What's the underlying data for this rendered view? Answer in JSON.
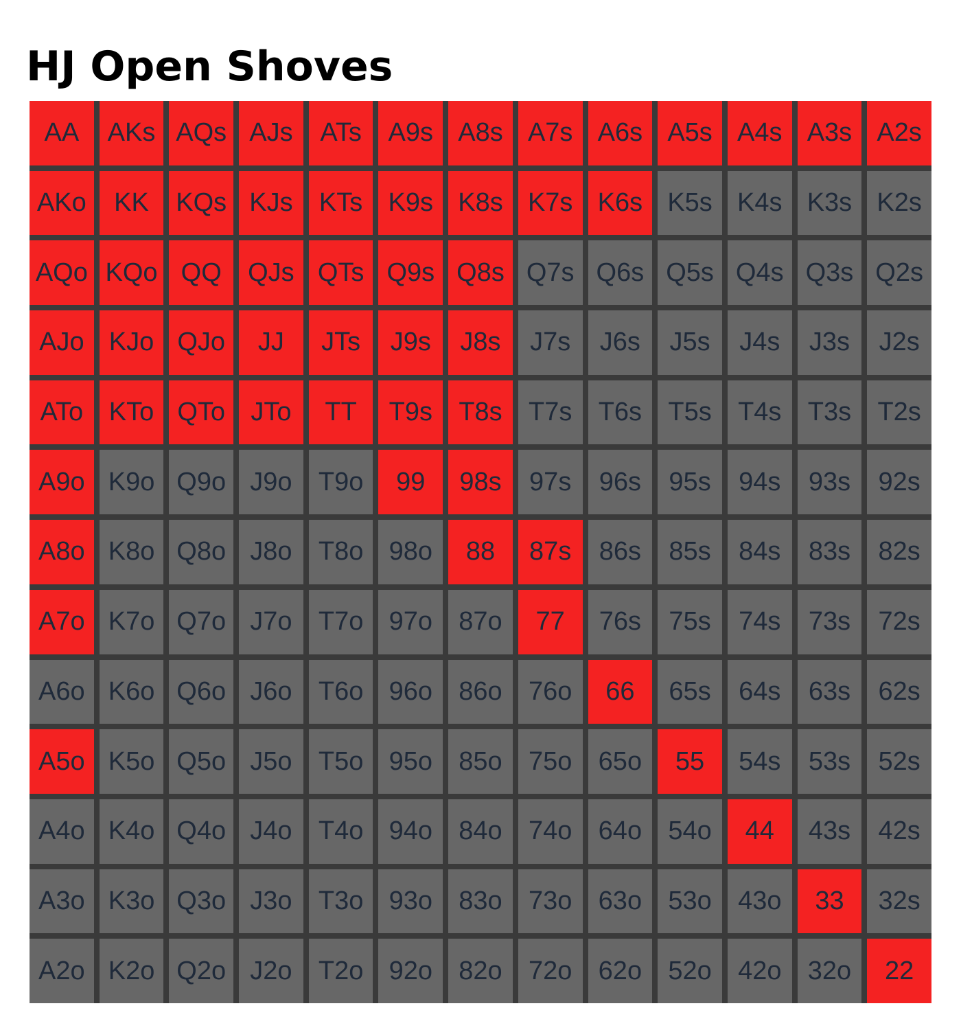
{
  "title": "HJ Open Shoves",
  "chart_data": {
    "type": "heatmap",
    "title": "HJ Open Shoves",
    "colors": {
      "shove": "#f42222",
      "fold": "#676767",
      "border": "#3a3a3a",
      "text": "#1f2a3a"
    },
    "rows": [
      [
        "AA",
        "AKs",
        "AQs",
        "AJs",
        "ATs",
        "A9s",
        "A8s",
        "A7s",
        "A6s",
        "A5s",
        "A4s",
        "A3s",
        "A2s"
      ],
      [
        "AKo",
        "KK",
        "KQs",
        "KJs",
        "KTs",
        "K9s",
        "K8s",
        "K7s",
        "K6s",
        "K5s",
        "K4s",
        "K3s",
        "K2s"
      ],
      [
        "AQo",
        "KQo",
        "QQ",
        "QJs",
        "QTs",
        "Q9s",
        "Q8s",
        "Q7s",
        "Q6s",
        "Q5s",
        "Q4s",
        "Q3s",
        "Q2s"
      ],
      [
        "AJo",
        "KJo",
        "QJo",
        "JJ",
        "JTs",
        "J9s",
        "J8s",
        "J7s",
        "J6s",
        "J5s",
        "J4s",
        "J3s",
        "J2s"
      ],
      [
        "ATo",
        "KTo",
        "QTo",
        "JTo",
        "TT",
        "T9s",
        "T8s",
        "T7s",
        "T6s",
        "T5s",
        "T4s",
        "T3s",
        "T2s"
      ],
      [
        "A9o",
        "K9o",
        "Q9o",
        "J9o",
        "T9o",
        "99",
        "98s",
        "97s",
        "96s",
        "95s",
        "94s",
        "93s",
        "92s"
      ],
      [
        "A8o",
        "K8o",
        "Q8o",
        "J8o",
        "T8o",
        "98o",
        "88",
        "87s",
        "86s",
        "85s",
        "84s",
        "83s",
        "82s"
      ],
      [
        "A7o",
        "K7o",
        "Q7o",
        "J7o",
        "T7o",
        "97o",
        "87o",
        "77",
        "76s",
        "75s",
        "74s",
        "73s",
        "72s"
      ],
      [
        "A6o",
        "K6o",
        "Q6o",
        "J6o",
        "T6o",
        "96o",
        "86o",
        "76o",
        "66",
        "65s",
        "64s",
        "63s",
        "62s"
      ],
      [
        "A5o",
        "K5o",
        "Q5o",
        "J5o",
        "T5o",
        "95o",
        "85o",
        "75o",
        "65o",
        "55",
        "54s",
        "53s",
        "52s"
      ],
      [
        "A4o",
        "K4o",
        "Q4o",
        "J4o",
        "T4o",
        "94o",
        "84o",
        "74o",
        "64o",
        "54o",
        "44",
        "43s",
        "42s"
      ],
      [
        "A3o",
        "K3o",
        "Q3o",
        "J3o",
        "T3o",
        "93o",
        "83o",
        "73o",
        "63o",
        "53o",
        "43o",
        "33",
        "32s"
      ],
      [
        "A2o",
        "K2o",
        "Q2o",
        "J2o",
        "T2o",
        "92o",
        "82o",
        "72o",
        "62o",
        "52o",
        "42o",
        "32o",
        "22"
      ]
    ],
    "shove": [
      "AA",
      "AKs",
      "AQs",
      "AJs",
      "ATs",
      "A9s",
      "A8s",
      "A7s",
      "A6s",
      "A5s",
      "A4s",
      "A3s",
      "A2s",
      "AKo",
      "KK",
      "KQs",
      "KJs",
      "KTs",
      "K9s",
      "K8s",
      "K7s",
      "K6s",
      "AQo",
      "KQo",
      "QQ",
      "QJs",
      "QTs",
      "Q9s",
      "Q8s",
      "AJo",
      "KJo",
      "QJo",
      "JJ",
      "JTs",
      "J9s",
      "J8s",
      "ATo",
      "KTo",
      "QTo",
      "JTo",
      "TT",
      "T9s",
      "T8s",
      "A9o",
      "99",
      "98s",
      "A8o",
      "88",
      "87s",
      "A7o",
      "77",
      "66",
      "A5o",
      "55",
      "44",
      "33",
      "22"
    ]
  }
}
